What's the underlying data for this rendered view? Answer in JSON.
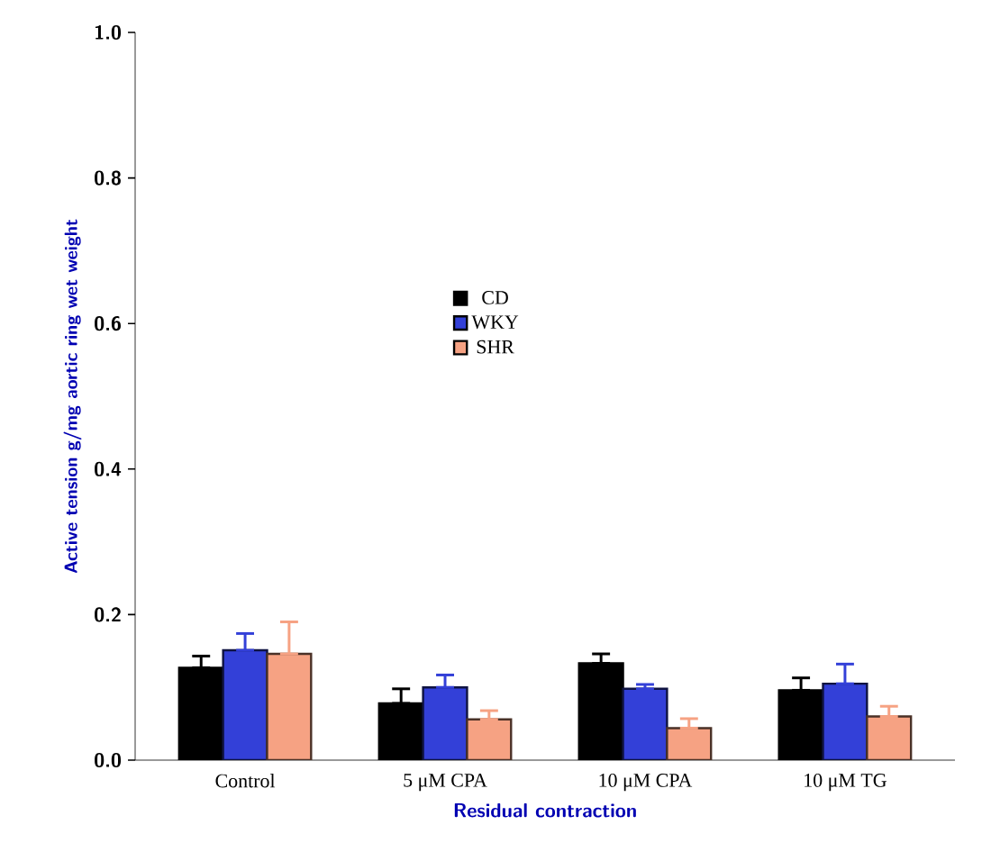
{
  "chart_data": {
    "type": "bar",
    "xlabel": "Residual contraction",
    "ylabel": "Active tension g/mg aortic ring wet weight",
    "categories": [
      "Control",
      "5 μM CPA",
      "10 μM CPA",
      "10 μM TG"
    ],
    "series": [
      {
        "name": "CD",
        "color": "#000000",
        "values": [
          0.127,
          0.078,
          0.133,
          0.096
        ],
        "errors": [
          [
            0.127,
            0.143
          ],
          [
            0.078,
            0.098
          ],
          [
            0.133,
            0.146
          ],
          [
            0.096,
            0.113
          ]
        ]
      },
      {
        "name": "WKY",
        "color": "#3340d8",
        "values": [
          0.151,
          0.1,
          0.098,
          0.105
        ],
        "errors": [
          [
            0.151,
            0.174
          ],
          [
            0.1,
            0.117
          ],
          [
            0.098,
            0.104
          ],
          [
            0.105,
            0.132
          ]
        ]
      },
      {
        "name": "SHR",
        "color": "#f6a283",
        "values": [
          0.146,
          0.056,
          0.044,
          0.06
        ],
        "errors": [
          [
            0.146,
            0.19
          ],
          [
            0.056,
            0.068
          ],
          [
            0.044,
            0.057
          ],
          [
            0.06,
            0.074
          ]
        ]
      }
    ],
    "ylim": [
      0,
      1.0
    ],
    "yticks": [
      {
        "value": 0,
        "label": "0.0"
      },
      0.2,
      0.4,
      0.6,
      0.8,
      {
        "value": 1.0,
        "label": "1.0"
      }
    ],
    "legend": "center",
    "grid": false
  }
}
